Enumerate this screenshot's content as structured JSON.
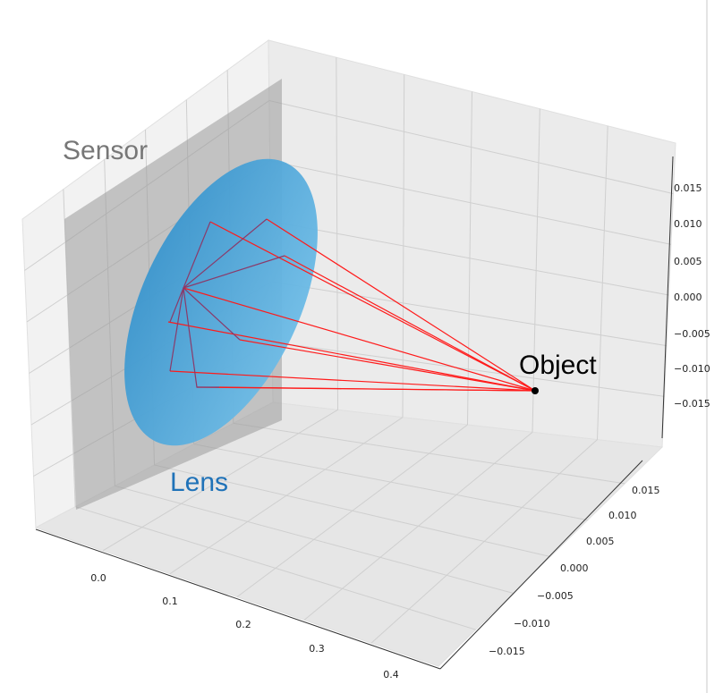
{
  "labels": {
    "sensor": "Sensor",
    "lens": "Lens",
    "object": "Object"
  },
  "axes": {
    "x_ticks": [
      "0.0",
      "0.1",
      "0.2",
      "0.3",
      "0.4"
    ],
    "y_ticks": [
      "0.015",
      "0.010",
      "0.005",
      "0.000",
      "−0.005",
      "−0.010",
      "−0.015"
    ],
    "z_ticks": [
      "0.015",
      "0.010",
      "0.005",
      "0.000",
      "−0.005",
      "−0.010",
      "−0.015"
    ]
  }
}
